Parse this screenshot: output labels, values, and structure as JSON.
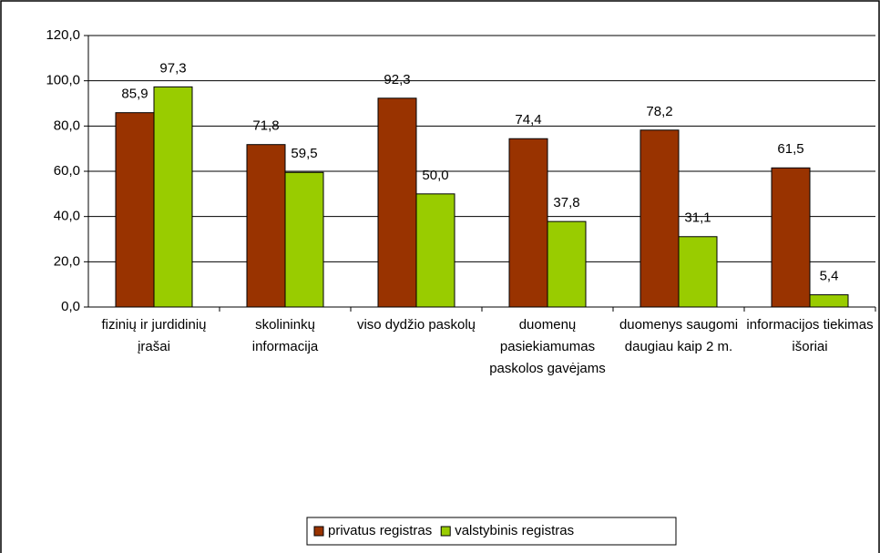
{
  "chart_data": {
    "type": "bar",
    "categories": [
      "fizinių ir jurdidinių įrašai",
      "skolininkų informacija",
      "viso dydžio paskolų",
      "duomenų pasiekiamumas paskolos gavėjams",
      "duomenys saugomi daugiau kaip 2 m.",
      "informacijos tiekimas išoriai"
    ],
    "series": [
      {
        "name": "privatus registras",
        "color": "#993300",
        "values": [
          85.9,
          71.8,
          92.3,
          74.4,
          78.2,
          61.5
        ],
        "value_labels": [
          "85,9",
          "71,8",
          "92,3",
          "74,4",
          "78,2",
          "61,5"
        ]
      },
      {
        "name": "valstybinis registras",
        "color": "#99cc00",
        "values": [
          97.3,
          59.5,
          50.0,
          37.8,
          31.1,
          5.4
        ],
        "value_labels": [
          "97,3",
          "59,5",
          "50,0",
          "37,8",
          "31,1",
          "5,4"
        ]
      }
    ],
    "ylim": [
      0,
      120
    ],
    "yticks": [
      {
        "value": 0,
        "label": "0,0"
      },
      {
        "value": 20,
        "label": "20,0"
      },
      {
        "value": 40,
        "label": "40,0"
      },
      {
        "value": 60,
        "label": "60,0"
      },
      {
        "value": 80,
        "label": "80,0"
      },
      {
        "value": 100,
        "label": "100,0"
      },
      {
        "value": 120,
        "label": "120,0"
      }
    ],
    "grid": true,
    "legend": "bottom"
  }
}
